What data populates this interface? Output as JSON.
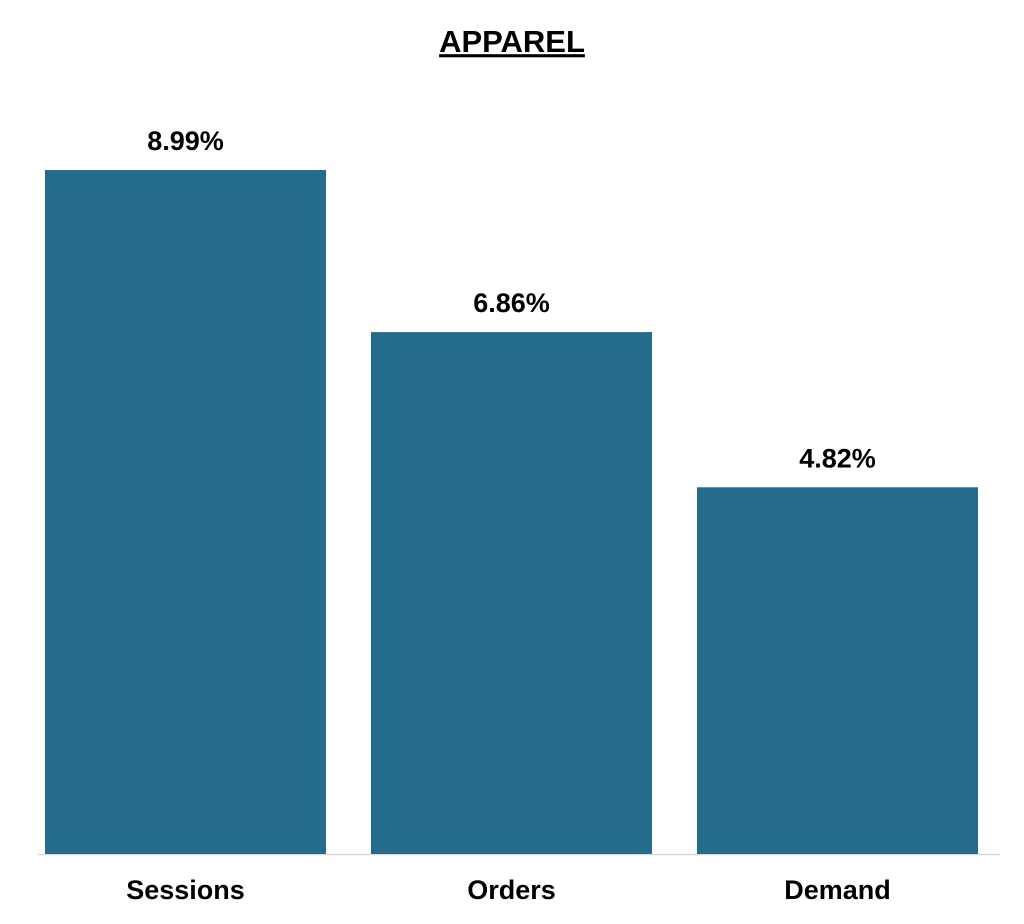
{
  "chart_data": {
    "type": "bar",
    "title": "APPAREL",
    "categories": [
      "Sessions",
      "Orders",
      "Demand"
    ],
    "values": [
      8.99,
      6.86,
      4.82
    ],
    "value_labels": [
      "8.99%",
      "6.86%",
      "4.82%"
    ],
    "color": "#256b8c"
  }
}
